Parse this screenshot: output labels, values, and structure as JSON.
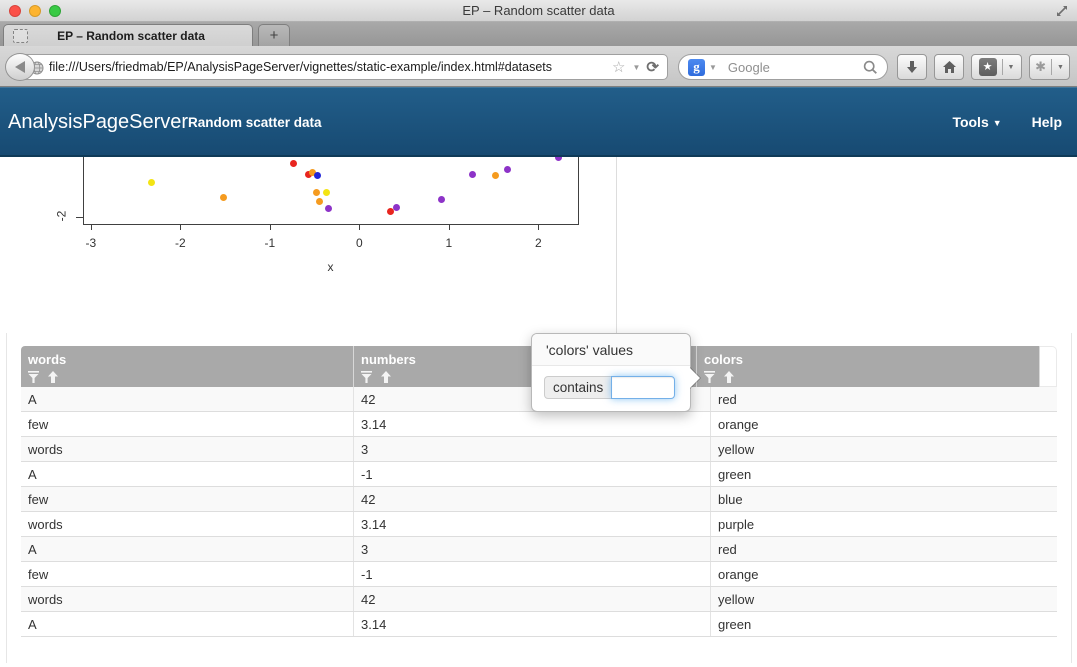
{
  "browser": {
    "window_title": "EP – Random scatter data",
    "tab_title": "EP – Random scatter data",
    "new_tab_label": "+",
    "url": "file:///Users/friedmab/EP/AnalysisPageServer/vignettes/static-example/index.html#datasets",
    "search_placeholder": "Google",
    "google_logo_letter": "g",
    "icons": {
      "star_outline": "☆",
      "caret_down": "▼",
      "reload": "⟳",
      "bookmark_star": "★",
      "addon_blob": "✱"
    }
  },
  "navbar": {
    "brand": "AnalysisPageServer",
    "page_title": "Random scatter data",
    "tools_label": "Tools",
    "help_label": "Help"
  },
  "chart_data": {
    "type": "scatter",
    "xlabel": "x",
    "x_axis": {
      "ticks": [
        -3,
        -2,
        -1,
        0,
        1,
        2
      ]
    },
    "y_axis": {
      "visible_ticks": [
        -2
      ]
    },
    "view_note_visible_region": "bottom portion of plot visible, y from about -2.05 to -1.3",
    "points": [
      {
        "x": -0.74,
        "y": -1.4,
        "color": "red"
      },
      {
        "x": -0.57,
        "y": -1.53,
        "color": "red"
      },
      {
        "x": -0.52,
        "y": -1.5,
        "color": "orange"
      },
      {
        "x": -0.47,
        "y": -1.54,
        "color": "blue"
      },
      {
        "x": -2.32,
        "y": -1.61,
        "color": "yellow"
      },
      {
        "x": -1.52,
        "y": -1.78,
        "color": "orange"
      },
      {
        "x": -0.48,
        "y": -1.73,
        "color": "orange"
      },
      {
        "x": -0.37,
        "y": -1.73,
        "color": "yellow"
      },
      {
        "x": -0.45,
        "y": -1.83,
        "color": "orange"
      },
      {
        "x": -0.35,
        "y": -1.91,
        "color": "purple"
      },
      {
        "x": 0.35,
        "y": -1.94,
        "color": "red"
      },
      {
        "x": 0.41,
        "y": -1.89,
        "color": "purple"
      },
      {
        "x": 0.92,
        "y": -1.8,
        "color": "purple"
      },
      {
        "x": 1.26,
        "y": -1.53,
        "color": "purple"
      },
      {
        "x": 1.52,
        "y": -1.54,
        "color": "orange"
      },
      {
        "x": 1.65,
        "y": -1.47,
        "color": "purple"
      },
      {
        "x": 2.23,
        "y": -1.33,
        "color": "purple"
      }
    ]
  },
  "table": {
    "columns": [
      {
        "label": "words"
      },
      {
        "label": "numbers"
      },
      {
        "label": "colors"
      }
    ],
    "rows": [
      [
        "A",
        "42",
        "red"
      ],
      [
        "few",
        "3.14",
        "orange"
      ],
      [
        "words",
        "3",
        "yellow"
      ],
      [
        "A",
        "-1",
        "green"
      ],
      [
        "few",
        "42",
        "blue"
      ],
      [
        "words",
        "3.14",
        "purple"
      ],
      [
        "A",
        "3",
        "red"
      ],
      [
        "few",
        "-1",
        "orange"
      ],
      [
        "words",
        "42",
        "yellow"
      ],
      [
        "A",
        "3.14",
        "green"
      ]
    ]
  },
  "popover": {
    "title": "'colors' values",
    "operator_label": "contains",
    "input_value": ""
  },
  "colors": {
    "navbar_top": "#225e8a",
    "navbar_bottom": "#174a72",
    "table_header_bg": "#a9a9a9",
    "row_stripe": "#f9f9f9",
    "focus_glow": "#52a8ec",
    "google_blue": "#3b78e7",
    "traffic_red": "#fb5149",
    "traffic_yellow": "#fdb430",
    "traffic_green": "#39ca45",
    "point_red": "#e8251f",
    "point_orange": "#f59b1f",
    "point_yellow": "#f3e414",
    "point_blue": "#2126d8",
    "point_purple": "#8d33c8",
    "point_green": "#2ca02c"
  }
}
